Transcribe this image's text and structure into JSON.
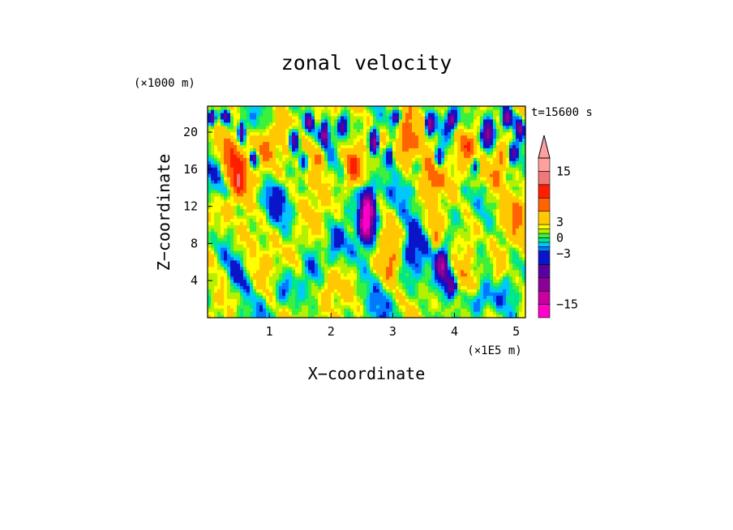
{
  "chart_data": {
    "type": "heatmap",
    "title": "zonal velocity",
    "xlabel": "X−coordinate",
    "ylabel": "Z−coordinate",
    "x_unit": "(×1E5 m)",
    "y_unit": "(×1000 m)",
    "time_label": "t=15600 s",
    "xlim": [
      0,
      5.15
    ],
    "ylim": [
      0,
      22.8
    ],
    "x_ticks": [
      1,
      2,
      3,
      4,
      5
    ],
    "x_tick_labels": [
      "1",
      "2",
      "3",
      "4",
      "5"
    ],
    "y_ticks": [
      4,
      8,
      12,
      16,
      20
    ],
    "y_tick_labels": [
      "4",
      "8",
      "12",
      "16",
      "20"
    ],
    "colorbar": {
      "levels": [
        -18,
        -15,
        -12,
        -9,
        -6,
        -3,
        -2,
        -1,
        0,
        1,
        2,
        3,
        6,
        9,
        12,
        15,
        18
      ],
      "colors": [
        "#ff00c8",
        "#c800a0",
        "#8c0096",
        "#5a00a0",
        "#0a14c8",
        "#0078ff",
        "#00c8ff",
        "#00e68c",
        "#3cf03c",
        "#b4f000",
        "#ffff00",
        "#ffc800",
        "#ff6400",
        "#ff1e00",
        "#f07878",
        "#ffa0a0"
      ],
      "tick_values": [
        -15,
        -3,
        0,
        3,
        15
      ],
      "tick_labels": [
        "−15",
        "−3",
        "0",
        "3",
        "15"
      ],
      "extend": "max"
    }
  }
}
